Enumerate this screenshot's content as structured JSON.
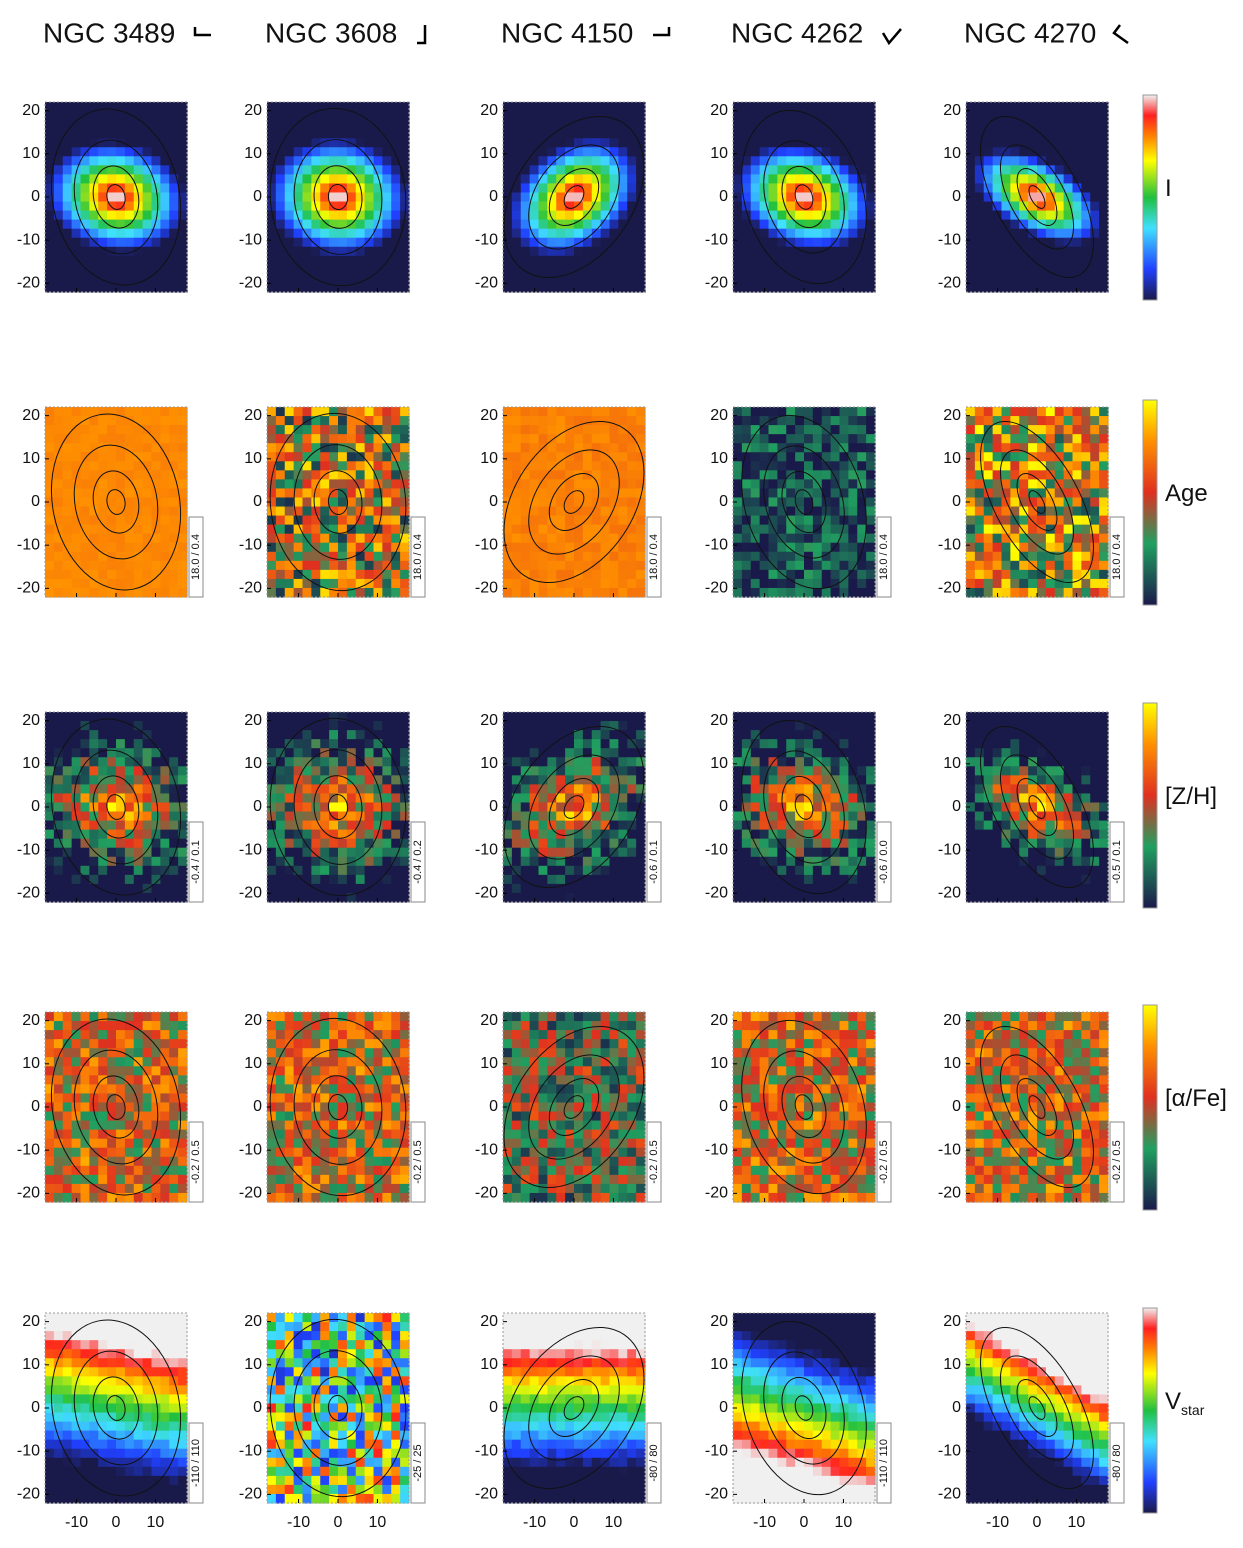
{
  "chart_data": {
    "type": "map",
    "columns": [
      "NGC 3489",
      "NGC 3608",
      "NGC 4150",
      "NGC 4262",
      "NGC 4270"
    ],
    "rows": [
      {
        "label": "I"
      },
      {
        "label": "Age",
        "range_labels": [
          "18.0 / 0.4",
          "18.0 / 0.4",
          "18.0 / 0.4",
          "18.0 / 0.4",
          "18.0 / 0.4"
        ]
      },
      {
        "label": "[Z/H]",
        "range_labels": [
          "-0.4 / 0.1",
          "-0.4 / 0.2",
          "-0.6 / 0.1",
          "-0.6 / 0.0",
          "-0.5 / 0.1"
        ]
      },
      {
        "label": "[α/Fe]",
        "range_labels": [
          "-0.2 / 0.5",
          "-0.2 / 0.5",
          "-0.2 / 0.5",
          "-0.2 / 0.5",
          "-0.2 / 0.5"
        ]
      },
      {
        "label": "V",
        "label_sub": "star",
        "range_labels": [
          "-110 / 110",
          "-25 / 25",
          "-80 / 80",
          "-110 / 110",
          "-80 / 80"
        ]
      }
    ],
    "xlim": [
      -18,
      18
    ],
    "ylim": [
      -22,
      22
    ],
    "xticks": [
      -10,
      0,
      10
    ],
    "yticks": [
      -20,
      -10,
      0,
      10,
      20
    ]
  }
}
